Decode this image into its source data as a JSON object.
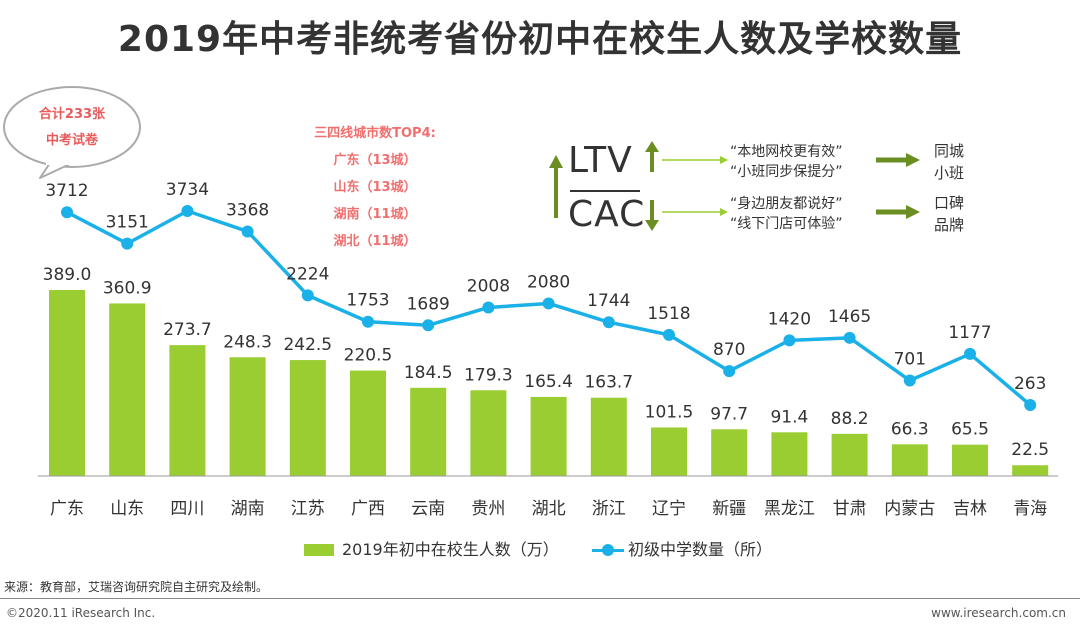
{
  "title": "2019年中考非统考省份初中在校生人数及学校数量",
  "bubble": {
    "line1": "合计233张",
    "line2": "中考试卷"
  },
  "top4": {
    "heading": "三四线城市数TOP4:",
    "items": [
      "广东（13城）",
      "山东（13城）",
      "湖南（11城）",
      "湖北（11城）"
    ]
  },
  "ltv_cac": {
    "ltv": "LTV",
    "cac": "CAC",
    "ltv_quotes": [
      "“本地网校更有效”",
      "“小班同步保提分”"
    ],
    "ltv_result": [
      "同城",
      "小班"
    ],
    "cac_quotes": [
      "“身边朋友都说好”",
      "“线下门店可体验”"
    ],
    "cac_result": [
      "口碑",
      "品牌"
    ]
  },
  "chart_data": {
    "type": "bar",
    "categories": [
      "广东",
      "山东",
      "四川",
      "湖南",
      "江苏",
      "广西",
      "云南",
      "贵州",
      "湖北",
      "浙江",
      "辽宁",
      "新疆",
      "黑龙江",
      "甘肃",
      "内蒙古",
      "吉林",
      "青海"
    ],
    "series": [
      {
        "name": "2019年初中在校生人数（万）",
        "type": "bar",
        "values": [
          389.0,
          360.9,
          273.7,
          248.3,
          242.5,
          220.5,
          184.5,
          179.3,
          165.4,
          163.7,
          101.5,
          97.7,
          91.4,
          88.2,
          66.3,
          65.5,
          22.5
        ],
        "labels": [
          "389.0",
          "360.9",
          "273.7",
          "248.3",
          "242.5",
          "220.5",
          "184.5",
          "179.3",
          "165.4",
          "163.7",
          "101.5",
          "97.7",
          "91.4",
          "88.2",
          "66.3",
          "65.5",
          "22.5"
        ]
      },
      {
        "name": "初级中学数量（所）",
        "type": "line",
        "values": [
          3712,
          3151,
          3734,
          3368,
          2224,
          1753,
          1689,
          2008,
          2080,
          1744,
          1518,
          870,
          1420,
          1465,
          701,
          1177,
          263
        ],
        "labels": [
          "3712",
          "3151",
          "3734",
          "3368",
          "2224",
          "1753",
          "1689",
          "2008",
          "2080",
          "1744",
          "1518",
          "870",
          "1420",
          "1465",
          "701",
          "1177",
          "263"
        ]
      }
    ],
    "bar_color": "#9acd32",
    "line_color": "#1ab0e8"
  },
  "source": "来源：教育部，艾瑞咨询研究院自主研究及绘制。",
  "copyright": "©2020.11 iResearch Inc.",
  "website": "www.iresearch.com.cn"
}
